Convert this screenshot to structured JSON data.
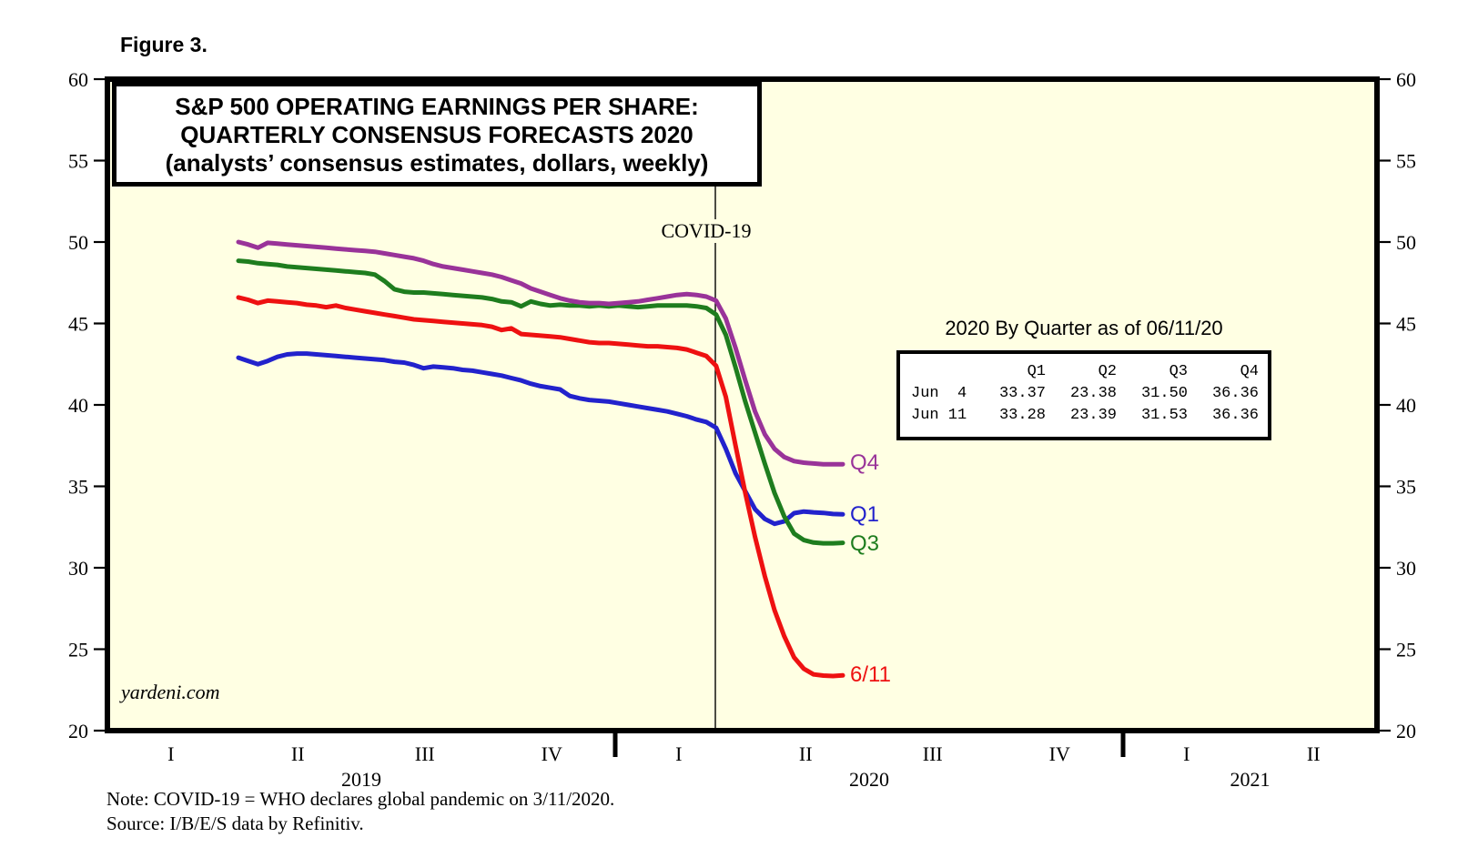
{
  "figure_label": "Figure 3.",
  "title_box": {
    "line1": "S&P 500 OPERATING EARNINGS PER SHARE:",
    "line2": "QUARTERLY CONSENSUS FORECASTS 2020",
    "line3": "(analysts’ consensus estimates, dollars, weekly)"
  },
  "covid_annotation": "COVID-19",
  "watermark": "yardeni.com",
  "notes": {
    "note": "Note: COVID-19 = WHO declares global pandemic on 3/11/2020.",
    "source": "Source: I/B/E/S data by Refinitiv."
  },
  "summary_table": {
    "title": "2020 By Quarter as of 06/11/20",
    "columns": [
      "Q1",
      "Q2",
      "Q3",
      "Q4"
    ],
    "rows": [
      {
        "label": "Jun  4",
        "values": [
          "33.37",
          "23.38",
          "31.50",
          "36.36"
        ]
      },
      {
        "label": "Jun 11",
        "values": [
          "33.28",
          "23.39",
          "31.53",
          "36.36"
        ]
      }
    ]
  },
  "chart_data": {
    "type": "line",
    "title": "S&P 500 Operating Earnings Per Share: Quarterly Consensus Forecasts 2020",
    "subtitle": "analysts’ consensus estimates, dollars, weekly",
    "ylim": [
      20,
      60
    ],
    "y_ticks": [
      60,
      55,
      50,
      45,
      40,
      35,
      30,
      25,
      20
    ],
    "grid": false,
    "background_color": "#FFFFE3",
    "x_note": "weekly observations from Q2 2019 through 6/11/2020",
    "x_axis": {
      "years": [
        {
          "label": "2019",
          "quarters": [
            "I",
            "II",
            "III",
            "IV"
          ]
        },
        {
          "label": "2020",
          "quarters": [
            "I",
            "II",
            "III",
            "IV"
          ]
        },
        {
          "label": "2021",
          "quarters": [
            "I",
            "II"
          ]
        }
      ]
    },
    "annotation": {
      "label": "COVID-19",
      "event": "3/11/2020"
    },
    "series": [
      {
        "name": "Q1",
        "end_label": "Q1",
        "color": "#2222CC",
        "values": [
          42.9,
          42.7,
          42.5,
          42.7,
          42.95,
          43.1,
          43.15,
          43.15,
          43.1,
          43.05,
          43.0,
          42.95,
          42.9,
          42.85,
          42.8,
          42.75,
          42.65,
          42.6,
          42.45,
          42.25,
          42.35,
          42.3,
          42.25,
          42.15,
          42.1,
          42.0,
          41.9,
          41.8,
          41.65,
          41.5,
          41.3,
          41.15,
          41.05,
          40.95,
          40.55,
          40.4,
          40.3,
          40.25,
          40.2,
          40.1,
          40.0,
          39.9,
          39.8,
          39.7,
          39.6,
          39.45,
          39.3,
          39.1,
          38.95,
          38.6,
          37.3,
          35.8,
          34.7,
          33.6,
          33.0,
          32.7,
          32.85,
          33.35,
          33.45,
          33.4,
          33.37,
          33.3,
          33.28
        ]
      },
      {
        "name": "Q2",
        "end_label": "6/11",
        "color": "#EE1111",
        "values": [
          46.6,
          46.45,
          46.25,
          46.4,
          46.35,
          46.3,
          46.25,
          46.15,
          46.1,
          46.0,
          46.1,
          45.95,
          45.85,
          45.75,
          45.65,
          45.55,
          45.45,
          45.35,
          45.25,
          45.2,
          45.15,
          45.1,
          45.05,
          45.0,
          44.95,
          44.9,
          44.8,
          44.6,
          44.7,
          44.35,
          44.3,
          44.25,
          44.2,
          44.15,
          44.05,
          43.95,
          43.85,
          43.8,
          43.8,
          43.75,
          43.7,
          43.65,
          43.6,
          43.6,
          43.55,
          43.5,
          43.4,
          43.2,
          43.0,
          42.4,
          40.5,
          37.5,
          34.6,
          31.9,
          29.5,
          27.4,
          25.8,
          24.5,
          23.8,
          23.45,
          23.38,
          23.35,
          23.39
        ]
      },
      {
        "name": "Q3",
        "end_label": "Q3",
        "color": "#1E7D1E",
        "values": [
          48.85,
          48.8,
          48.7,
          48.65,
          48.6,
          48.5,
          48.45,
          48.4,
          48.35,
          48.3,
          48.25,
          48.2,
          48.15,
          48.1,
          48.0,
          47.6,
          47.1,
          46.95,
          46.9,
          46.9,
          46.85,
          46.8,
          46.75,
          46.7,
          46.65,
          46.6,
          46.5,
          46.35,
          46.3,
          46.05,
          46.35,
          46.2,
          46.1,
          46.15,
          46.1,
          46.1,
          46.05,
          46.1,
          46.05,
          46.1,
          46.05,
          46.0,
          46.05,
          46.1,
          46.1,
          46.1,
          46.1,
          46.05,
          45.95,
          45.55,
          44.3,
          42.3,
          40.2,
          38.3,
          36.4,
          34.6,
          33.15,
          32.1,
          31.7,
          31.55,
          31.5,
          31.5,
          31.53
        ]
      },
      {
        "name": "Q4",
        "end_label": "Q4",
        "color": "#993399",
        "values": [
          50.0,
          49.85,
          49.65,
          49.95,
          49.9,
          49.85,
          49.8,
          49.75,
          49.7,
          49.65,
          49.6,
          49.55,
          49.5,
          49.45,
          49.4,
          49.3,
          49.2,
          49.1,
          49.0,
          48.85,
          48.65,
          48.5,
          48.4,
          48.3,
          48.2,
          48.1,
          48.0,
          47.85,
          47.65,
          47.45,
          47.15,
          46.95,
          46.75,
          46.55,
          46.4,
          46.3,
          46.25,
          46.25,
          46.2,
          46.25,
          46.3,
          46.35,
          46.45,
          46.55,
          46.65,
          46.75,
          46.8,
          46.75,
          46.65,
          46.4,
          45.3,
          43.5,
          41.5,
          39.6,
          38.2,
          37.3,
          36.8,
          36.55,
          36.45,
          36.4,
          36.36,
          36.36,
          36.36
        ]
      }
    ]
  }
}
